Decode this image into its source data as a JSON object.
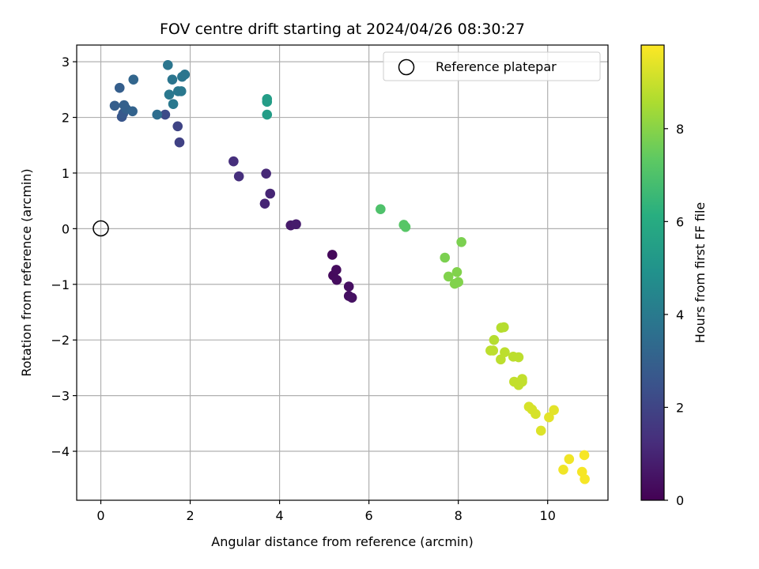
{
  "chart_data": {
    "type": "scatter",
    "title": "FOV centre drift starting at 2024/04/26 08:30:27",
    "xlabel": "Angular distance from reference (arcmin)",
    "ylabel": "Rotation from reference (arcmin)",
    "xlim": [
      -0.54,
      11.35
    ],
    "ylim": [
      -4.88,
      3.3
    ],
    "xticks": [
      0,
      2,
      4,
      6,
      8,
      10
    ],
    "yticks": [
      -4,
      -3,
      -2,
      -1,
      0,
      1,
      2,
      3
    ],
    "grid": true,
    "colormap": "viridis",
    "colorbar": {
      "label": "Hours from first FF file",
      "range": [
        0,
        9.8
      ],
      "ticks": [
        0,
        2,
        4,
        6,
        8
      ]
    },
    "legend": {
      "position": "top-right",
      "entries": [
        "Reference platepar"
      ]
    },
    "reference_point": {
      "x": 0,
      "y": 0
    },
    "points": [
      {
        "x": 5.18,
        "y": -0.47,
        "hours": 0.2
      },
      {
        "x": 5.2,
        "y": -0.84,
        "hours": 0.25
      },
      {
        "x": 5.27,
        "y": -0.74,
        "hours": 0.3
      },
      {
        "x": 5.28,
        "y": -0.92,
        "hours": 0.3
      },
      {
        "x": 5.55,
        "y": -1.04,
        "hours": 0.4
      },
      {
        "x": 5.55,
        "y": -1.21,
        "hours": 0.4
      },
      {
        "x": 5.62,
        "y": -1.24,
        "hours": 0.45
      },
      {
        "x": 4.25,
        "y": 0.06,
        "hours": 0.7
      },
      {
        "x": 4.37,
        "y": 0.08,
        "hours": 0.75
      },
      {
        "x": 3.67,
        "y": 0.45,
        "hours": 1.0
      },
      {
        "x": 3.79,
        "y": 0.63,
        "hours": 1.0
      },
      {
        "x": 3.7,
        "y": 0.99,
        "hours": 1.1
      },
      {
        "x": 2.97,
        "y": 1.21,
        "hours": 1.3
      },
      {
        "x": 3.09,
        "y": 0.94,
        "hours": 1.3
      },
      {
        "x": 1.76,
        "y": 1.55,
        "hours": 1.9
      },
      {
        "x": 1.72,
        "y": 1.84,
        "hours": 2.0
      },
      {
        "x": 1.44,
        "y": 2.05,
        "hours": 2.2
      },
      {
        "x": 1.26,
        "y": 2.05,
        "hours": 3.5
      },
      {
        "x": 0.47,
        "y": 2.01,
        "hours": 2.6
      },
      {
        "x": 0.5,
        "y": 2.07,
        "hours": 2.7
      },
      {
        "x": 0.31,
        "y": 2.21,
        "hours": 2.9
      },
      {
        "x": 0.52,
        "y": 2.22,
        "hours": 3.0
      },
      {
        "x": 0.57,
        "y": 2.15,
        "hours": 3.0
      },
      {
        "x": 0.71,
        "y": 2.11,
        "hours": 3.1
      },
      {
        "x": 0.42,
        "y": 2.53,
        "hours": 2.9
      },
      {
        "x": 0.73,
        "y": 2.68,
        "hours": 3.2
      },
      {
        "x": 1.62,
        "y": 2.24,
        "hours": 3.9
      },
      {
        "x": 1.53,
        "y": 2.41,
        "hours": 3.9
      },
      {
        "x": 1.73,
        "y": 2.47,
        "hours": 3.9
      },
      {
        "x": 1.8,
        "y": 2.47,
        "hours": 3.9
      },
      {
        "x": 1.6,
        "y": 2.68,
        "hours": 3.8
      },
      {
        "x": 1.82,
        "y": 2.73,
        "hours": 3.8
      },
      {
        "x": 1.88,
        "y": 2.77,
        "hours": 3.8
      },
      {
        "x": 1.5,
        "y": 2.94,
        "hours": 3.8
      },
      {
        "x": 3.72,
        "y": 2.05,
        "hours": 5.4
      },
      {
        "x": 3.72,
        "y": 2.28,
        "hours": 5.4
      },
      {
        "x": 3.72,
        "y": 2.33,
        "hours": 5.4
      },
      {
        "x": 6.26,
        "y": 0.35,
        "hours": 7.0
      },
      {
        "x": 6.78,
        "y": 0.07,
        "hours": 7.2
      },
      {
        "x": 6.82,
        "y": 0.03,
        "hours": 7.2
      },
      {
        "x": 8.07,
        "y": -0.24,
        "hours": 7.8
      },
      {
        "x": 7.7,
        "y": -0.52,
        "hours": 7.8
      },
      {
        "x": 7.97,
        "y": -0.78,
        "hours": 7.9
      },
      {
        "x": 7.78,
        "y": -0.86,
        "hours": 7.9
      },
      {
        "x": 7.92,
        "y": -0.99,
        "hours": 7.9
      },
      {
        "x": 8.0,
        "y": -0.96,
        "hours": 7.9
      },
      {
        "x": 8.96,
        "y": -1.78,
        "hours": 8.7
      },
      {
        "x": 9.02,
        "y": -1.77,
        "hours": 8.7
      },
      {
        "x": 8.8,
        "y": -2.0,
        "hours": 8.7
      },
      {
        "x": 8.72,
        "y": -2.19,
        "hours": 8.8
      },
      {
        "x": 8.78,
        "y": -2.19,
        "hours": 8.8
      },
      {
        "x": 9.04,
        "y": -2.22,
        "hours": 8.8
      },
      {
        "x": 8.95,
        "y": -2.35,
        "hours": 8.8
      },
      {
        "x": 9.23,
        "y": -2.3,
        "hours": 8.8
      },
      {
        "x": 9.35,
        "y": -2.31,
        "hours": 8.8
      },
      {
        "x": 9.25,
        "y": -2.75,
        "hours": 8.9
      },
      {
        "x": 9.35,
        "y": -2.81,
        "hours": 8.9
      },
      {
        "x": 9.43,
        "y": -2.7,
        "hours": 8.9
      },
      {
        "x": 9.43,
        "y": -2.75,
        "hours": 8.9
      },
      {
        "x": 9.58,
        "y": -3.2,
        "hours": 9.2
      },
      {
        "x": 9.65,
        "y": -3.25,
        "hours": 9.2
      },
      {
        "x": 9.73,
        "y": -3.33,
        "hours": 9.2
      },
      {
        "x": 9.85,
        "y": -3.63,
        "hours": 9.3
      },
      {
        "x": 10.03,
        "y": -3.39,
        "hours": 9.4
      },
      {
        "x": 10.14,
        "y": -3.26,
        "hours": 9.4
      },
      {
        "x": 10.35,
        "y": -4.33,
        "hours": 9.6
      },
      {
        "x": 10.48,
        "y": -4.14,
        "hours": 9.6
      },
      {
        "x": 10.77,
        "y": -4.37,
        "hours": 9.7
      },
      {
        "x": 10.82,
        "y": -4.07,
        "hours": 9.7
      },
      {
        "x": 10.83,
        "y": -4.5,
        "hours": 9.7
      }
    ]
  }
}
